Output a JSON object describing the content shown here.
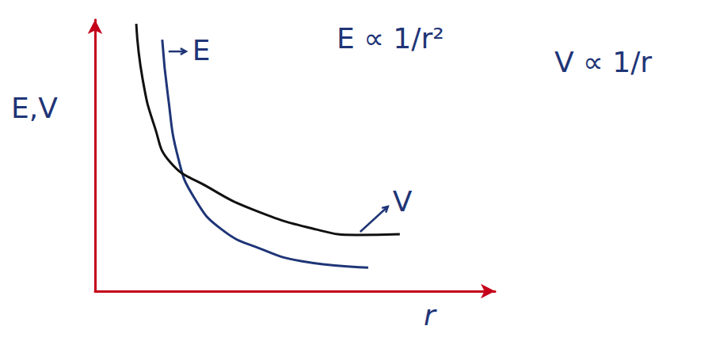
{
  "chart_data": {
    "type": "line",
    "x_label": "r",
    "y_label": "E,V",
    "annotations": [
      "E ∝ 1/r²",
      "V ∝ 1/r"
    ],
    "xlim": [
      0,
      10
    ],
    "ylim": [
      0,
      10
    ],
    "tick_labels": false,
    "grid": false,
    "series": [
      {
        "name": "E",
        "color": "#1f3577",
        "line_style": "solid",
        "x": [
          1.68,
          1.82,
          2.08,
          2.48,
          3.17,
          4.16,
          5.15,
          6.83
        ],
        "values": [
          9.27,
          7.23,
          4.9,
          3.44,
          2.27,
          1.55,
          1.11,
          0.87
        ]
      },
      {
        "name": "V",
        "color": "#111111",
        "line_style": "solid",
        "x": [
          1.03,
          1.19,
          1.49,
          1.88,
          2.77,
          3.96,
          5.54,
          6.53,
          7.62
        ],
        "values": [
          9.85,
          7.81,
          6.06,
          4.75,
          3.88,
          3.0,
          2.27,
          2.07,
          2.1
        ]
      }
    ]
  }
}
